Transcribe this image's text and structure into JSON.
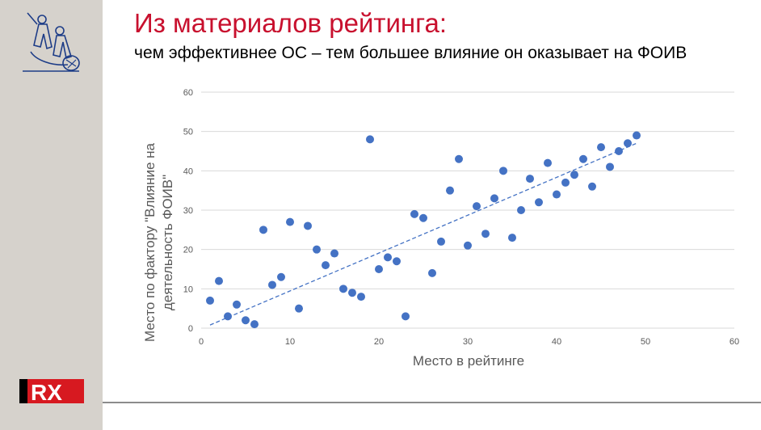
{
  "slide": {
    "title": "Из материалов рейтинга:",
    "subtitle": "чем эффективнее ОС – тем  большее влияние он оказывает на ФОИВ",
    "colors": {
      "sidebar": "#d6d2cc",
      "title": "#c8102e",
      "marker": "#4472c4",
      "logo_blue": "#1d3c87",
      "rx_red": "#d71920"
    },
    "logos": {
      "top_icon": "sculpture-emblem",
      "bottom_text": "RX"
    }
  },
  "chart_data": {
    "type": "scatter",
    "xlabel": "Место в рейтинге",
    "ylabel_lines": [
      "Место по фактору \"Влияние на",
      "деятельность ФОИВ\""
    ],
    "xlim": [
      0,
      60
    ],
    "ylim": [
      0,
      60
    ],
    "xticks": [
      0,
      10,
      20,
      30,
      40,
      50,
      60
    ],
    "yticks": [
      0,
      10,
      20,
      30,
      40,
      50,
      60
    ],
    "grid": "horizontal",
    "trendline": {
      "style": "dashed",
      "x": [
        1,
        49
      ],
      "y": [
        0.8,
        47
      ]
    },
    "points": [
      [
        1,
        7
      ],
      [
        2,
        12
      ],
      [
        3,
        3
      ],
      [
        4,
        6
      ],
      [
        5,
        2
      ],
      [
        6,
        1
      ],
      [
        7,
        25
      ],
      [
        8,
        11
      ],
      [
        9,
        13
      ],
      [
        10,
        27
      ],
      [
        11,
        5
      ],
      [
        12,
        26
      ],
      [
        13,
        20
      ],
      [
        14,
        16
      ],
      [
        15,
        19
      ],
      [
        16,
        10
      ],
      [
        17,
        9
      ],
      [
        18,
        8
      ],
      [
        19,
        48
      ],
      [
        20,
        15
      ],
      [
        21,
        18
      ],
      [
        22,
        17
      ],
      [
        23,
        3
      ],
      [
        24,
        29
      ],
      [
        25,
        28
      ],
      [
        26,
        14
      ],
      [
        27,
        22
      ],
      [
        28,
        35
      ],
      [
        29,
        43
      ],
      [
        30,
        21
      ],
      [
        31,
        31
      ],
      [
        32,
        24
      ],
      [
        33,
        33
      ],
      [
        34,
        40
      ],
      [
        35,
        23
      ],
      [
        36,
        30
      ],
      [
        37,
        38
      ],
      [
        38,
        32
      ],
      [
        39,
        42
      ],
      [
        40,
        34
      ],
      [
        41,
        37
      ],
      [
        42,
        39
      ],
      [
        43,
        43
      ],
      [
        44,
        36
      ],
      [
        45,
        46
      ],
      [
        46,
        41
      ],
      [
        47,
        45
      ],
      [
        48,
        47
      ],
      [
        49,
        49
      ]
    ]
  }
}
